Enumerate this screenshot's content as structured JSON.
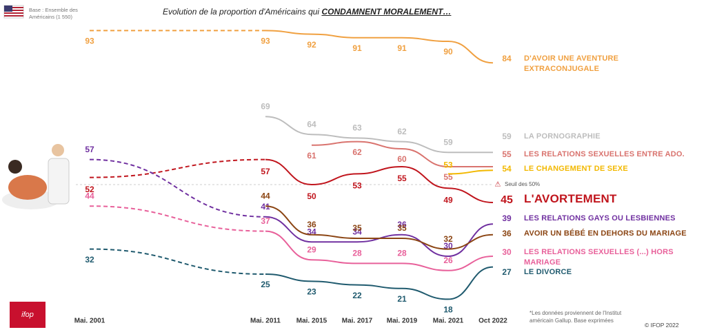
{
  "chart_data": {
    "type": "line",
    "title": "Evolution de la proportion d'Américains qui",
    "title_emphasis": "CONDAMNENT MORALEMENT…",
    "base_note": "Base : Ensemble des Américains (1 550)",
    "footnote": "*Les données proviennent de l'Institut américain Gallup. Base exprimées",
    "copyright": "© IFOP 2022",
    "logo": "ifop",
    "threshold": {
      "value": 50,
      "label": "Seuil des 50%"
    },
    "categories": [
      "Mai. 2001",
      "Mai. 2011",
      "Mai. 2015",
      "Mai. 2017",
      "Mai. 2019",
      "Mai. 2021",
      "Oct 2022"
    ],
    "ylim": [
      15,
      100
    ],
    "series": [
      {
        "name": "D'AVOIR UNE AVENTURE EXTRACONJUGALE",
        "color": "#f0a040",
        "values": [
          93,
          93,
          92,
          91,
          91,
          90,
          84
        ]
      },
      {
        "name": "LA PORNOGRAPHIE",
        "color": "#bdbdbd",
        "values": [
          null,
          69,
          64,
          63,
          62,
          59,
          59
        ]
      },
      {
        "name": "LES RELATIONS SEXUELLES ENTRE ADO.",
        "color": "#d9736e",
        "values": [
          null,
          null,
          61,
          62,
          60,
          55,
          55
        ]
      },
      {
        "name": "LE CHANGEMENT DE SEXE",
        "color": "#f2b800",
        "values": [
          null,
          null,
          null,
          null,
          null,
          53,
          54
        ]
      },
      {
        "name": "L'AVORTEMENT",
        "color": "#c0141c",
        "values": [
          52,
          57,
          50,
          53,
          55,
          49,
          45
        ]
      },
      {
        "name": "LES RELATIONS GAYS OU LESBIENNES",
        "color": "#7030a0",
        "values": [
          57,
          41,
          34,
          34,
          36,
          30,
          39
        ]
      },
      {
        "name": "AVOIR UN BÉBÉ EN DEHORS DU MARIAGE",
        "color": "#8b4513",
        "values": [
          null,
          44,
          36,
          35,
          35,
          32,
          36
        ]
      },
      {
        "name": "LES RELATIONS SEXUELLES (...) HORS MARIAGE",
        "color": "#e8609a",
        "values": [
          44,
          37,
          29,
          28,
          28,
          26,
          30
        ]
      },
      {
        "name": "LE DIVORCE",
        "color": "#1f5a6e",
        "values": [
          32,
          25,
          23,
          22,
          21,
          18,
          27
        ]
      }
    ]
  }
}
